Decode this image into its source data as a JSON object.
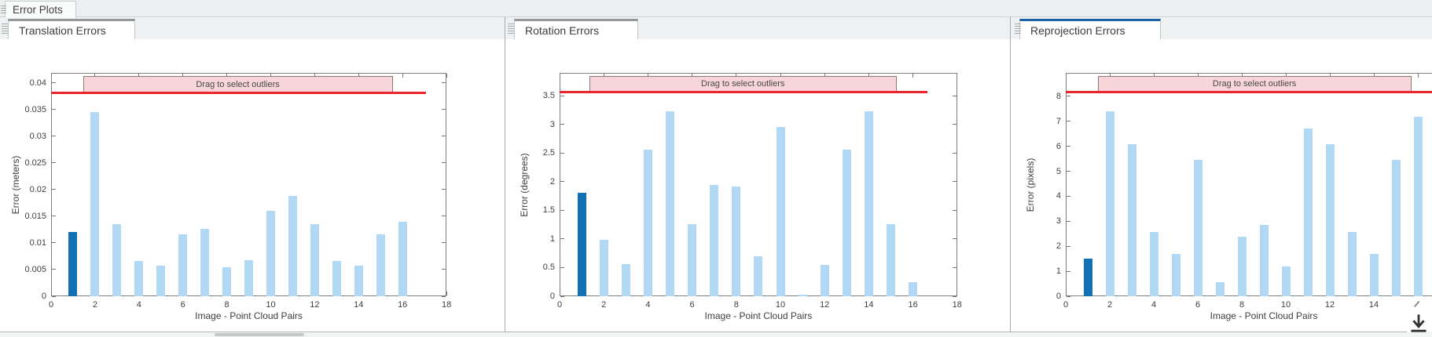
{
  "group_tab": {
    "label": "Error Plots"
  },
  "colors": {
    "bar_light": "#b1d9f6",
    "bar_highlight": "#1271b5",
    "threshold_line": "#e8262b",
    "overlay_fill": "#f7d5d8",
    "overlay_border": "#8f7878",
    "active_tab_accent": "#1c63a6",
    "inactive_tab_accent": "#949899"
  },
  "icons": [
    "window-grip-icon",
    "panel-drag-grip-icon",
    "download-arrow-icon"
  ],
  "panels": [
    {
      "tab": "Translation Errors",
      "active": false,
      "chart_data": {
        "type": "bar",
        "title": "",
        "xlabel": "Image - Point Cloud Pairs",
        "ylabel": "Error (meters)",
        "x_positions": [
          1,
          2,
          3,
          4,
          5,
          6,
          7,
          8,
          9,
          10,
          11,
          12,
          13,
          14,
          15,
          16
        ],
        "values": [
          0.012,
          0.0345,
          0.0135,
          0.0066,
          0.0058,
          0.0116,
          0.0126,
          0.0055,
          0.0067,
          0.016,
          0.0188,
          0.0135,
          0.0066,
          0.0057,
          0.0116,
          0.014
        ],
        "highlighted_bar_x": 1,
        "yticks": [
          0,
          0.005,
          0.01,
          0.015,
          0.02,
          0.025,
          0.03,
          0.035,
          0.04
        ],
        "ytick_labels": [
          "0",
          "0.005",
          "0.01",
          "0.015",
          "0.02",
          "0.025",
          "0.03",
          "0.035",
          "0.04"
        ],
        "xticks": [
          0,
          2,
          4,
          6,
          8,
          10,
          12,
          14,
          16,
          18
        ],
        "xtick_labels": [
          "0",
          "2",
          "4",
          "6",
          "8",
          "10",
          "12",
          "14",
          "16",
          "18"
        ],
        "xlim": [
          0,
          18
        ],
        "ylim": [
          0,
          0.0419
        ],
        "grid": false,
        "threshold": 0.0382,
        "threshold_span": [
          0,
          17.05
        ],
        "overlay_label": "Drag to select outliers",
        "overlay_span": [
          1.45,
          15.55
        ]
      }
    },
    {
      "tab": "Rotation Errors",
      "active": false,
      "chart_data": {
        "type": "bar",
        "title": "",
        "xlabel": "Image - Point Cloud Pairs",
        "ylabel": "Error (degrees)",
        "x_positions": [
          1,
          2,
          3,
          4,
          5,
          6,
          7,
          8,
          9,
          10,
          11,
          12,
          13,
          14,
          15,
          16
        ],
        "values": [
          1.8,
          0.98,
          0.56,
          2.56,
          3.23,
          1.26,
          1.95,
          1.92,
          0.7,
          2.96,
          0.03,
          0.55,
          2.56,
          3.23,
          1.26,
          0.25
        ],
        "highlighted_bar_x": 1,
        "yticks": [
          0,
          0.5,
          1,
          1.5,
          2,
          2.5,
          3,
          3.5
        ],
        "ytick_labels": [
          "0",
          "0.5",
          "1",
          "1.5",
          "2",
          "2.5",
          "3",
          "3.5"
        ],
        "xticks": [
          0,
          2,
          4,
          6,
          8,
          10,
          12,
          14,
          16,
          18
        ],
        "xtick_labels": [
          "0",
          "2",
          "4",
          "6",
          "8",
          "10",
          "12",
          "14",
          "16",
          "18"
        ],
        "xlim": [
          0,
          18
        ],
        "ylim": [
          0,
          3.9
        ],
        "grid": false,
        "threshold": 3.56,
        "threshold_span": [
          0,
          16.65
        ],
        "overlay_label": "Drag to select outliers",
        "overlay_span": [
          1.35,
          15.25
        ]
      }
    },
    {
      "tab": "Reprojection Errors",
      "active": true,
      "chart_data": {
        "type": "bar",
        "title": "",
        "xlabel": "Image - Point Cloud Pairs",
        "ylabel": "Error (pixels)",
        "x_positions": [
          1,
          2,
          3,
          4,
          5,
          6,
          7,
          8,
          9,
          10,
          11,
          12,
          13,
          14,
          15,
          16
        ],
        "values": [
          1.5,
          7.4,
          6.1,
          2.57,
          1.7,
          5.45,
          0.55,
          2.37,
          2.87,
          1.18,
          6.7,
          6.1,
          2.57,
          1.7,
          5.45,
          7.17
        ],
        "highlighted_bar_x": 1,
        "yticks": [
          0,
          1,
          2,
          3,
          4,
          5,
          6,
          7,
          8
        ],
        "ytick_labels": [
          "0",
          "1",
          "2",
          "3",
          "4",
          "5",
          "6",
          "7",
          "8"
        ],
        "xticks": [
          0,
          2,
          4,
          6,
          8,
          10,
          12,
          14,
          16
        ],
        "xtick_labels": [
          "0",
          "2",
          "4",
          "6",
          "8",
          "10",
          "12",
          "14",
          ""
        ],
        "xlim": [
          0,
          18
        ],
        "ylim": [
          0,
          8.94
        ],
        "grid": false,
        "threshold": 8.16,
        "threshold_span": [
          0,
          18
        ],
        "overlay_label": "Drag to select outliers",
        "overlay_span": [
          1.45,
          15.7
        ]
      }
    }
  ]
}
